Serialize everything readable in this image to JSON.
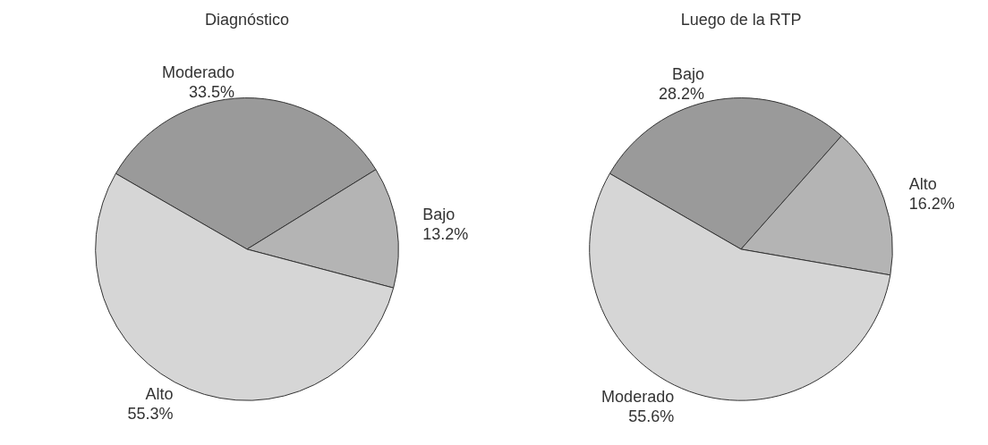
{
  "chart_data": [
    {
      "type": "pie",
      "title": "Diagnóstico",
      "categories": [
        "Moderado",
        "Bajo",
        "Alto"
      ],
      "values": [
        33.5,
        13.2,
        55.3
      ],
      "value_labels": [
        "33.5%",
        "13.2%",
        "55.3%"
      ],
      "colors": [
        "#9a9a9a",
        "#b4b4b4",
        "#d6d6d6"
      ]
    },
    {
      "type": "pie",
      "title": "Luego de la RTP",
      "categories": [
        "Bajo",
        "Alto",
        "Moderado"
      ],
      "values": [
        28.2,
        16.2,
        55.6
      ],
      "value_labels": [
        "28.2%",
        "16.2%",
        "55.6%"
      ],
      "colors": [
        "#9a9a9a",
        "#b4b4b4",
        "#d6d6d6"
      ]
    }
  ]
}
